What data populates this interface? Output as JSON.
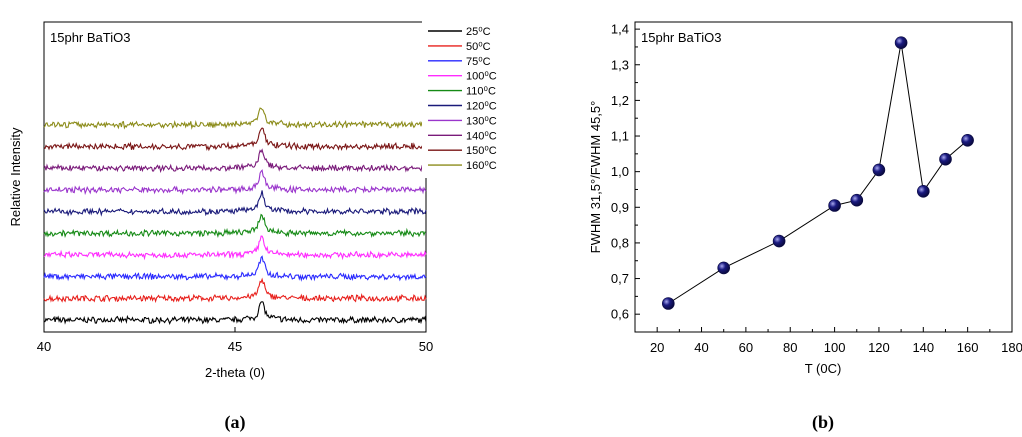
{
  "chart_data": [
    {
      "type": "line",
      "panel_label": "(a)",
      "annotation": "15phr BaTiO3",
      "xlabel": "2-theta (0)",
      "ylabel": "Relative Intensity",
      "xlim": [
        40,
        50
      ],
      "x_ticks": [
        "40",
        "45",
        "50"
      ],
      "legend_position": "right",
      "peak_position": 45.7,
      "series": [
        {
          "name": "25⁰C",
          "color": "#000000"
        },
        {
          "name": "50⁰C",
          "color": "#e8201c"
        },
        {
          "name": "75⁰C",
          "color": "#2a2aff"
        },
        {
          "name": "100⁰C",
          "color": "#ff2cff"
        },
        {
          "name": "110⁰C",
          "color": "#158a15"
        },
        {
          "name": "120⁰C",
          "color": "#1a1a7a"
        },
        {
          "name": "130⁰C",
          "color": "#9a35cc"
        },
        {
          "name": "140⁰C",
          "color": "#7a1a7a"
        },
        {
          "name": "150⁰C",
          "color": "#7a1515"
        },
        {
          "name": "160⁰C",
          "color": "#8c8c1a"
        }
      ]
    },
    {
      "type": "scatter",
      "panel_label": "(b)",
      "annotation": "15phr BaTiO3",
      "xlabel": "T (0C)",
      "ylabel": "FWHM 31,5°/FWHM 45,5°",
      "xlim": [
        10,
        180
      ],
      "ylim": [
        0.55,
        1.42
      ],
      "x_ticks": [
        "20",
        "40",
        "60",
        "80",
        "100",
        "120",
        "140",
        "160",
        "180"
      ],
      "y_ticks": [
        "0,6",
        "0,7",
        "0,8",
        "0,9",
        "1,0",
        "1,1",
        "1,2",
        "1,3",
        "1,4"
      ],
      "x": [
        25,
        50,
        75,
        100,
        110,
        120,
        130,
        140,
        150,
        160
      ],
      "y": [
        0.63,
        0.73,
        0.805,
        0.905,
        0.92,
        1.005,
        1.362,
        0.945,
        1.035,
        1.088
      ],
      "marker_color": "#1a1a80"
    }
  ]
}
